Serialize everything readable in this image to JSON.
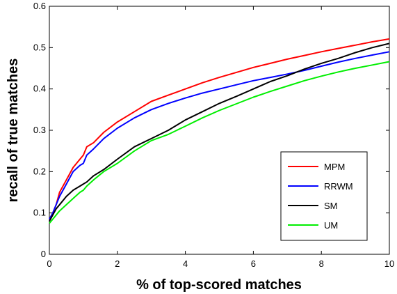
{
  "chart_data": {
    "type": "line",
    "title": "",
    "xlabel": "% of top-scored matches",
    "ylabel": "recall of true matches",
    "xlim": [
      0,
      10
    ],
    "ylim": [
      0,
      0.6
    ],
    "xticks": [
      "0",
      "2",
      "4",
      "6",
      "8",
      "10"
    ],
    "yticks": [
      "0",
      "0.1",
      "0.2",
      "0.3",
      "0.4",
      "0.5",
      "0.6"
    ],
    "grid": false,
    "legend_position": "bottom-right",
    "series": [
      {
        "name": "MPM",
        "color": "#ff0000",
        "x": [
          0,
          0.1,
          0.2,
          0.3,
          0.5,
          0.7,
          0.9,
          1.0,
          1.1,
          1.3,
          1.6,
          2.0,
          2.5,
          3.0,
          3.5,
          4.0,
          4.5,
          5.0,
          5.5,
          6.0,
          6.5,
          7.0,
          7.5,
          8.0,
          8.5,
          9.0,
          9.5,
          10.0
        ],
        "y": [
          0.085,
          0.1,
          0.12,
          0.15,
          0.18,
          0.21,
          0.23,
          0.24,
          0.26,
          0.27,
          0.295,
          0.32,
          0.345,
          0.37,
          0.385,
          0.4,
          0.415,
          0.428,
          0.44,
          0.452,
          0.462,
          0.472,
          0.481,
          0.49,
          0.498,
          0.506,
          0.514,
          0.521
        ]
      },
      {
        "name": "RRWM",
        "color": "#0000ff",
        "x": [
          0,
          0.1,
          0.2,
          0.3,
          0.5,
          0.7,
          0.9,
          1.0,
          1.1,
          1.3,
          1.6,
          2.0,
          2.5,
          3.0,
          3.5,
          4.0,
          4.5,
          5.0,
          5.5,
          6.0,
          6.5,
          7.0,
          7.5,
          8.0,
          8.5,
          9.0,
          9.5,
          10.0
        ],
        "y": [
          0.085,
          0.1,
          0.12,
          0.14,
          0.17,
          0.2,
          0.215,
          0.22,
          0.24,
          0.255,
          0.28,
          0.305,
          0.33,
          0.35,
          0.365,
          0.378,
          0.39,
          0.4,
          0.41,
          0.42,
          0.428,
          0.436,
          0.445,
          0.455,
          0.465,
          0.474,
          0.482,
          0.49
        ]
      },
      {
        "name": "SM",
        "color": "#000000",
        "x": [
          0,
          0.1,
          0.2,
          0.3,
          0.5,
          0.7,
          0.9,
          1.0,
          1.1,
          1.3,
          1.6,
          2.0,
          2.5,
          3.0,
          3.5,
          4.0,
          4.5,
          5.0,
          5.5,
          6.0,
          6.5,
          7.0,
          7.5,
          8.0,
          8.5,
          9.0,
          9.5,
          10.0
        ],
        "y": [
          0.08,
          0.095,
          0.11,
          0.12,
          0.14,
          0.155,
          0.165,
          0.17,
          0.175,
          0.19,
          0.205,
          0.23,
          0.26,
          0.28,
          0.3,
          0.325,
          0.345,
          0.365,
          0.382,
          0.4,
          0.418,
          0.432,
          0.448,
          0.462,
          0.474,
          0.488,
          0.5,
          0.51
        ]
      },
      {
        "name": "UM",
        "color": "#00ee00",
        "x": [
          0,
          0.1,
          0.2,
          0.3,
          0.5,
          0.7,
          0.9,
          1.0,
          1.1,
          1.3,
          1.6,
          2.0,
          2.5,
          3.0,
          3.5,
          4.0,
          4.5,
          5.0,
          5.5,
          6.0,
          6.5,
          7.0,
          7.5,
          8.0,
          8.5,
          9.0,
          9.5,
          10.0
        ],
        "y": [
          0.075,
          0.085,
          0.095,
          0.105,
          0.12,
          0.135,
          0.15,
          0.155,
          0.165,
          0.18,
          0.2,
          0.22,
          0.25,
          0.275,
          0.29,
          0.31,
          0.33,
          0.348,
          0.364,
          0.38,
          0.394,
          0.407,
          0.42,
          0.431,
          0.441,
          0.45,
          0.458,
          0.466
        ]
      }
    ]
  }
}
